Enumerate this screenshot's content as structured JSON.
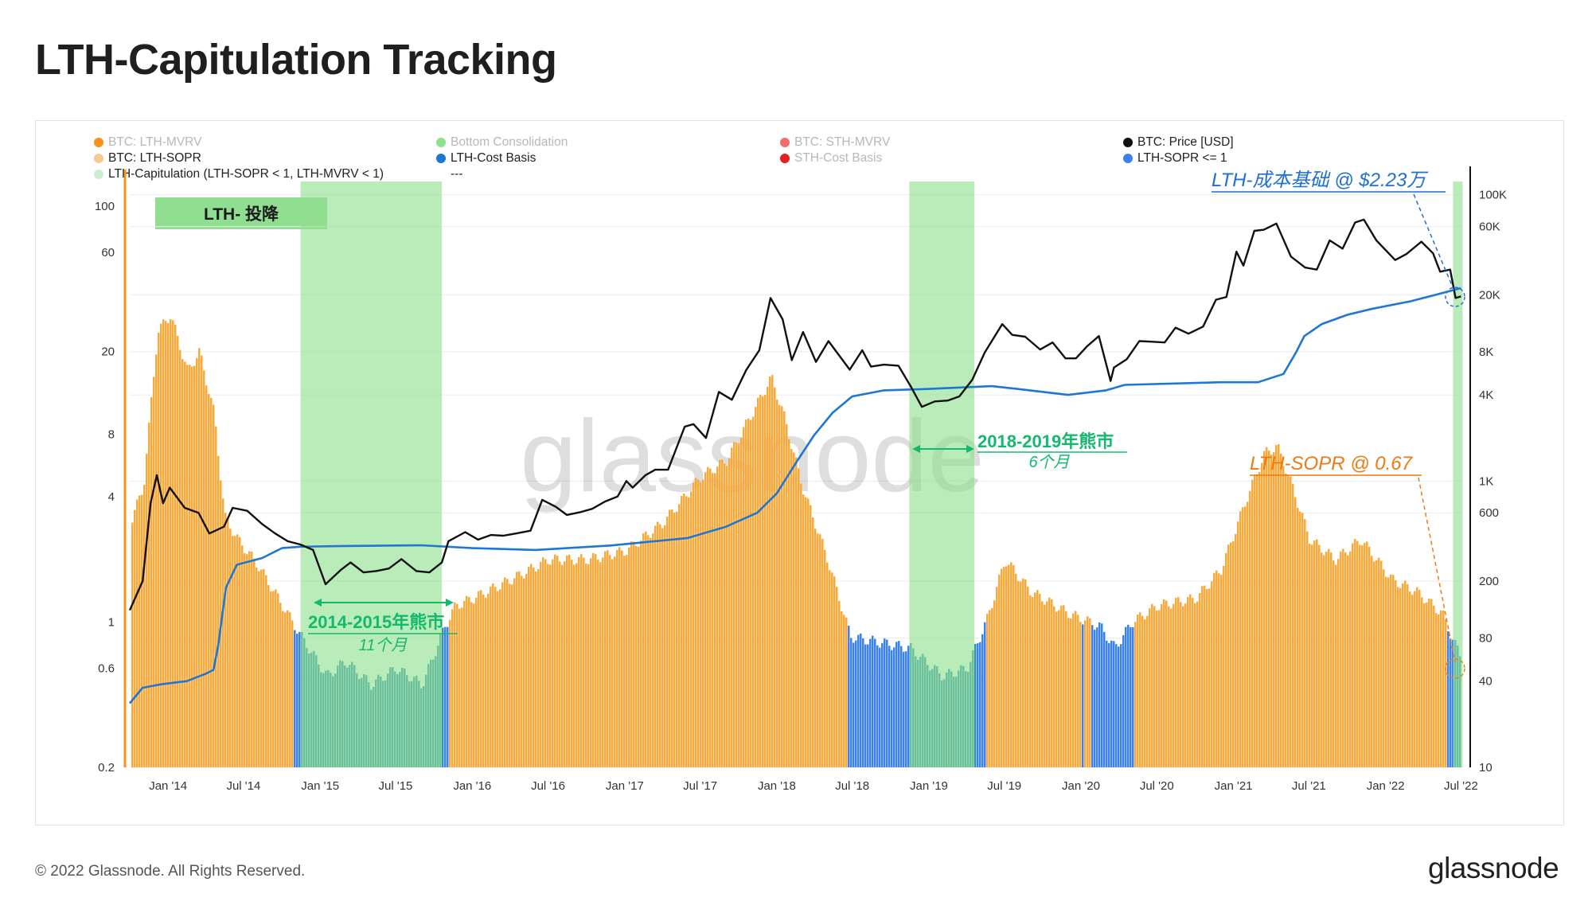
{
  "page": {
    "title": "LTH-Capitulation Tracking",
    "footer_copyright": "© 2022 Glassnode. All Rights Reserved.",
    "footer_logo": "glassnode",
    "watermark": "glassnode"
  },
  "legend": [
    {
      "label": "BTC: LTH-MVRV",
      "color": "#f7931a",
      "faded": true
    },
    {
      "label": "Bottom Consolidation",
      "color": "#90e090",
      "faded": true
    },
    {
      "label": "BTC: STH-MVRV",
      "color": "#f26d6d",
      "faded": true
    },
    {
      "label": "BTC: Price [USD]",
      "color": "#111111",
      "faded": false
    },
    {
      "label": "BTC: LTH-SOPR",
      "color": "#f8c98e",
      "faded": false
    },
    {
      "label": "LTH-Cost Basis",
      "color": "#1f77d4",
      "faded": false
    },
    {
      "label": "STH-Cost Basis",
      "color": "#e62020",
      "faded": true
    },
    {
      "label": "LTH-SOPR <= 1",
      "color": "#3b82f0",
      "faded": false
    },
    {
      "label": "LTH-Capitulation (LTH-SOPR < 1, LTH-MVRV < 1)",
      "color": "#cdeecd",
      "faded": false
    },
    {
      "label": "---",
      "color": "",
      "faded": false
    }
  ],
  "badge": {
    "label": "LTH- 投降"
  },
  "annotations": {
    "bear_2014": {
      "title": "2014-2015年熊市",
      "duration": "11个月"
    },
    "bear_2018": {
      "title": "2018-2019年熊市",
      "duration": "6个月"
    },
    "cost_basis": "LTH-成本基础 @ $2.23万",
    "sopr": "LTH-SOPR @ 0.67"
  },
  "colors": {
    "sopr_area": "#f9a83a",
    "sopr_below_one": "#3b82f0",
    "capitulation": "#90e090",
    "price_line": "#111111",
    "cost_basis_line": "#1f77d4",
    "annotation_green": "#14b86e",
    "annotation_blue": "#1f6fd4",
    "annotation_orange": "#ef7a12"
  },
  "chart_data": {
    "type": "line",
    "title": "LTH-Capitulation Tracking",
    "x_ticks": [
      "Jan '14",
      "Jul '14",
      "Jan '15",
      "Jul '15",
      "Jan '16",
      "Jul '16",
      "Jan '17",
      "Jul '17",
      "Jan '18",
      "Jul '18",
      "Jan '19",
      "Jul '19",
      "Jan '20",
      "Jul '20",
      "Jan '21",
      "Jul '21",
      "Jan '22",
      "Jul '22"
    ],
    "left_axis": {
      "label": "LTH-SOPR",
      "scale": "log",
      "ticks": [
        "0.2",
        "0.6",
        "1",
        "4",
        "8",
        "20",
        "60",
        "100"
      ],
      "range": [
        0.2,
        150
      ]
    },
    "right_axis": {
      "label": "Price [USD]",
      "scale": "log",
      "ticks": [
        "10",
        "40",
        "80",
        "200",
        "600",
        "1K",
        "4K",
        "8K",
        "20K",
        "60K",
        "100K"
      ],
      "range": [
        10,
        150000
      ]
    },
    "capitulation_periods": [
      {
        "start": "2014-11-15",
        "end": "2015-10-20",
        "label": "2014-2015年熊市"
      },
      {
        "start": "2018-11-15",
        "end": "2019-04-20",
        "label": "2018-2019年熊市"
      },
      {
        "start": "2022-06-12",
        "end": "2022-07-05",
        "label": "LTH- 投降"
      }
    ],
    "series": [
      {
        "name": "BTC: Price [USD]",
        "axis": "right",
        "points": [
          [
            "2013-10-01",
            125
          ],
          [
            "2013-11-01",
            200
          ],
          [
            "2013-11-20",
            700
          ],
          [
            "2013-12-05",
            1100
          ],
          [
            "2013-12-20",
            700
          ],
          [
            "2014-01-05",
            900
          ],
          [
            "2014-02-10",
            650
          ],
          [
            "2014-03-15",
            600
          ],
          [
            "2014-04-10",
            430
          ],
          [
            "2014-05-15",
            480
          ],
          [
            "2014-06-05",
            650
          ],
          [
            "2014-07-10",
            620
          ],
          [
            "2014-08-15",
            500
          ],
          [
            "2014-09-15",
            430
          ],
          [
            "2014-10-15",
            380
          ],
          [
            "2014-11-15",
            360
          ],
          [
            "2014-12-15",
            330
          ],
          [
            "2015-01-14",
            190
          ],
          [
            "2015-02-20",
            240
          ],
          [
            "2015-03-15",
            270
          ],
          [
            "2015-04-15",
            230
          ],
          [
            "2015-05-15",
            235
          ],
          [
            "2015-06-15",
            245
          ],
          [
            "2015-07-15",
            285
          ],
          [
            "2015-08-20",
            235
          ],
          [
            "2015-09-20",
            230
          ],
          [
            "2015-10-20",
            270
          ],
          [
            "2015-11-05",
            380
          ],
          [
            "2015-12-15",
            440
          ],
          [
            "2016-01-15",
            390
          ],
          [
            "2016-02-15",
            420
          ],
          [
            "2016-03-15",
            415
          ],
          [
            "2016-04-15",
            430
          ],
          [
            "2016-05-20",
            450
          ],
          [
            "2016-06-17",
            740
          ],
          [
            "2016-07-20",
            660
          ],
          [
            "2016-08-15",
            580
          ],
          [
            "2016-09-15",
            605
          ],
          [
            "2016-10-15",
            640
          ],
          [
            "2016-11-15",
            720
          ],
          [
            "2016-12-15",
            780
          ],
          [
            "2017-01-05",
            1000
          ],
          [
            "2017-01-20",
            900
          ],
          [
            "2017-02-20",
            1100
          ],
          [
            "2017-03-15",
            1200
          ],
          [
            "2017-04-15",
            1200
          ],
          [
            "2017-05-25",
            2400
          ],
          [
            "2017-06-15",
            2500
          ],
          [
            "2017-07-15",
            2000
          ],
          [
            "2017-08-15",
            4200
          ],
          [
            "2017-09-15",
            3700
          ],
          [
            "2017-10-20",
            6000
          ],
          [
            "2017-11-20",
            8200
          ],
          [
            "2017-12-17",
            19000
          ],
          [
            "2018-01-15",
            13500
          ],
          [
            "2018-02-06",
            7000
          ],
          [
            "2018-03-05",
            11000
          ],
          [
            "2018-04-05",
            6800
          ],
          [
            "2018-05-05",
            9500
          ],
          [
            "2018-06-25",
            6000
          ],
          [
            "2018-07-25",
            8200
          ],
          [
            "2018-08-15",
            6300
          ],
          [
            "2018-09-15",
            6500
          ],
          [
            "2018-10-20",
            6400
          ],
          [
            "2018-11-20",
            4500
          ],
          [
            "2018-12-15",
            3300
          ],
          [
            "2019-01-15",
            3600
          ],
          [
            "2019-02-15",
            3650
          ],
          [
            "2019-03-15",
            3900
          ],
          [
            "2019-04-15",
            5100
          ],
          [
            "2019-05-15",
            7900
          ],
          [
            "2019-06-26",
            12500
          ],
          [
            "2019-07-20",
            10500
          ],
          [
            "2019-08-20",
            10200
          ],
          [
            "2019-09-25",
            8300
          ],
          [
            "2019-10-25",
            9300
          ],
          [
            "2019-11-25",
            7200
          ],
          [
            "2019-12-20",
            7200
          ],
          [
            "2020-01-15",
            8700
          ],
          [
            "2020-02-13",
            10300
          ],
          [
            "2020-03-12",
            5000
          ],
          [
            "2020-03-20",
            6200
          ],
          [
            "2020-04-20",
            7100
          ],
          [
            "2020-05-20",
            9500
          ],
          [
            "2020-06-20",
            9400
          ],
          [
            "2020-07-20",
            9300
          ],
          [
            "2020-08-15",
            11800
          ],
          [
            "2020-09-15",
            10700
          ],
          [
            "2020-10-20",
            12000
          ],
          [
            "2020-11-20",
            18500
          ],
          [
            "2020-12-15",
            19300
          ],
          [
            "2021-01-08",
            40000
          ],
          [
            "2021-01-25",
            32000
          ],
          [
            "2021-02-20",
            56000
          ],
          [
            "2021-03-15",
            57000
          ],
          [
            "2021-04-14",
            63000
          ],
          [
            "2021-05-19",
            37000
          ],
          [
            "2021-06-22",
            31000
          ],
          [
            "2021-07-20",
            30000
          ],
          [
            "2021-08-20",
            48000
          ],
          [
            "2021-09-20",
            42000
          ],
          [
            "2021-10-20",
            64000
          ],
          [
            "2021-11-10",
            67000
          ],
          [
            "2021-12-10",
            48000
          ],
          [
            "2022-01-24",
            35000
          ],
          [
            "2022-02-20",
            38500
          ],
          [
            "2022-03-28",
            47000
          ],
          [
            "2022-04-25",
            39000
          ],
          [
            "2022-05-12",
            29000
          ],
          [
            "2022-06-05",
            30000
          ],
          [
            "2022-06-18",
            19000
          ],
          [
            "2022-07-01",
            19500
          ]
        ]
      },
      {
        "name": "LTH-Cost Basis",
        "axis": "right",
        "points": [
          [
            "2013-10-01",
            28
          ],
          [
            "2013-11-01",
            36
          ],
          [
            "2013-12-15",
            38
          ],
          [
            "2014-02-15",
            40
          ],
          [
            "2014-04-01",
            45
          ],
          [
            "2014-04-20",
            48
          ],
          [
            "2014-05-01",
            70
          ],
          [
            "2014-05-20",
            180
          ],
          [
            "2014-06-15",
            260
          ],
          [
            "2014-08-15",
            290
          ],
          [
            "2014-10-01",
            340
          ],
          [
            "2014-11-15",
            348
          ],
          [
            "2015-03-01",
            352
          ],
          [
            "2015-09-01",
            356
          ],
          [
            "2016-01-01",
            340
          ],
          [
            "2016-06-01",
            330
          ],
          [
            "2016-12-01",
            355
          ],
          [
            "2017-06-01",
            400
          ],
          [
            "2017-09-01",
            480
          ],
          [
            "2017-11-15",
            600
          ],
          [
            "2018-01-01",
            820
          ],
          [
            "2018-02-20",
            1400
          ],
          [
            "2018-04-01",
            2100
          ],
          [
            "2018-05-15",
            3000
          ],
          [
            "2018-07-01",
            3900
          ],
          [
            "2018-09-15",
            4300
          ],
          [
            "2019-01-01",
            4400
          ],
          [
            "2019-06-01",
            4600
          ],
          [
            "2019-08-01",
            4400
          ],
          [
            "2019-12-01",
            4000
          ],
          [
            "2020-03-01",
            4300
          ],
          [
            "2020-04-15",
            4700
          ],
          [
            "2020-12-01",
            4900
          ],
          [
            "2021-03-01",
            4900
          ],
          [
            "2021-05-01",
            5600
          ],
          [
            "2021-06-01",
            8000
          ],
          [
            "2021-06-20",
            10300
          ],
          [
            "2021-08-01",
            12500
          ],
          [
            "2021-10-01",
            14500
          ],
          [
            "2021-12-01",
            16000
          ],
          [
            "2022-03-01",
            18000
          ],
          [
            "2022-05-01",
            20000
          ],
          [
            "2022-07-01",
            22300
          ]
        ]
      },
      {
        "name": "BTC: LTH-SOPR",
        "axis": "left",
        "points": [
          [
            "2013-10-01",
            3.0
          ],
          [
            "2013-11-01",
            4.5
          ],
          [
            "2013-12-05",
            25
          ],
          [
            "2014-01-05",
            30
          ],
          [
            "2014-02-15",
            16
          ],
          [
            "2014-03-15",
            20
          ],
          [
            "2014-04-20",
            10
          ],
          [
            "2014-05-15",
            3.2
          ],
          [
            "2014-06-15",
            2.5
          ],
          [
            "2014-08-01",
            1.9
          ],
          [
            "2014-10-01",
            1.2
          ],
          [
            "2014-11-15",
            0.85
          ],
          [
            "2015-01-15",
            0.55
          ],
          [
            "2015-03-01",
            0.65
          ],
          [
            "2015-05-01",
            0.5
          ],
          [
            "2015-07-01",
            0.6
          ],
          [
            "2015-09-01",
            0.5
          ],
          [
            "2015-10-25",
            0.95
          ],
          [
            "2015-11-20",
            1.2
          ],
          [
            "2016-01-01",
            1.3
          ],
          [
            "2016-04-01",
            1.6
          ],
          [
            "2016-07-01",
            2.0
          ],
          [
            "2016-10-01",
            2.0
          ],
          [
            "2017-01-01",
            2.2
          ],
          [
            "2017-04-01",
            3.0
          ],
          [
            "2017-07-01",
            5.0
          ],
          [
            "2017-09-01",
            6.0
          ],
          [
            "2017-12-17",
            15
          ],
          [
            "2018-01-15",
            10
          ],
          [
            "2018-03-01",
            4.5
          ],
          [
            "2018-05-01",
            2.0
          ],
          [
            "2018-06-25",
            0.85
          ],
          [
            "2018-09-01",
            0.8
          ],
          [
            "2018-11-15",
            0.75
          ],
          [
            "2019-02-01",
            0.55
          ],
          [
            "2019-04-01",
            0.6
          ],
          [
            "2019-05-20",
            1.05
          ],
          [
            "2019-07-01",
            2.0
          ],
          [
            "2019-09-01",
            1.4
          ],
          [
            "2019-12-01",
            1.1
          ],
          [
            "2020-02-15",
            0.95
          ],
          [
            "2020-03-20",
            0.75
          ],
          [
            "2020-05-01",
            1.0
          ],
          [
            "2020-07-01",
            1.2
          ],
          [
            "2020-10-01",
            1.3
          ],
          [
            "2020-12-01",
            1.8
          ],
          [
            "2021-02-01",
            4.0
          ],
          [
            "2021-03-15",
            6.5
          ],
          [
            "2021-04-14",
            7.0
          ],
          [
            "2021-05-20",
            4.5
          ],
          [
            "2021-07-01",
            2.5
          ],
          [
            "2021-09-01",
            2.0
          ],
          [
            "2021-11-01",
            2.5
          ],
          [
            "2022-01-15",
            1.6
          ],
          [
            "2022-03-15",
            1.4
          ],
          [
            "2022-05-15",
            1.1
          ],
          [
            "2022-06-12",
            0.8
          ],
          [
            "2022-07-01",
            0.67
          ]
        ]
      }
    ]
  }
}
